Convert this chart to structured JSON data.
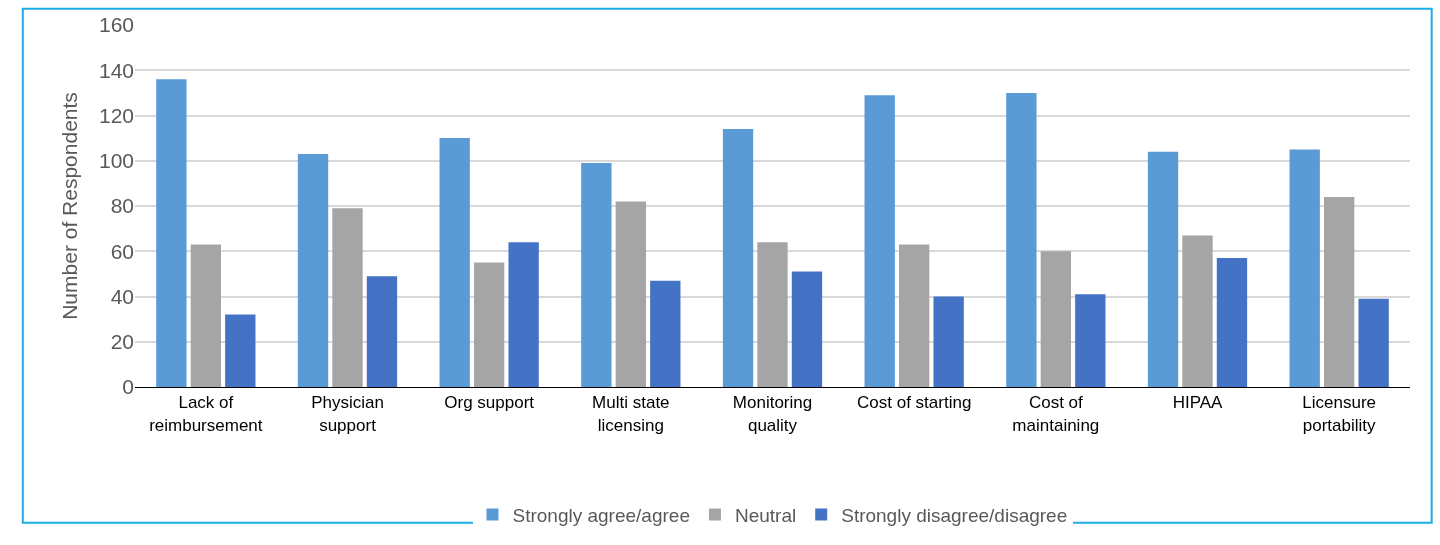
{
  "chart_data": {
    "type": "bar",
    "ylabel": "Number of Respondents",
    "categories": [
      "Lack of\nreimbursement",
      "Physician\nsupport",
      "Org support",
      "Multi state\nlicensing",
      "Monitoring\nquality",
      "Cost of starting",
      "Cost of\nmaintaining",
      "HIPAA",
      "Licensure\nportability"
    ],
    "series": [
      {
        "name": "Strongly agree/agree",
        "color": "#5b9bd5",
        "values": [
          136,
          103,
          110,
          99,
          114,
          129,
          130,
          104,
          105
        ]
      },
      {
        "name": "Neutral",
        "color": "#a5a5a5",
        "values": [
          63,
          79,
          55,
          82,
          64,
          63,
          60,
          67,
          84
        ]
      },
      {
        "name": "Strongly disagree/disagree",
        "color": "#4472c4",
        "values": [
          32,
          49,
          64,
          47,
          51,
          40,
          41,
          57,
          39
        ]
      }
    ],
    "ylim": [
      0,
      160
    ],
    "yticks": [
      0,
      20,
      40,
      60,
      80,
      100,
      120,
      140,
      160
    ],
    "grid": "y",
    "legend": "bottom"
  }
}
